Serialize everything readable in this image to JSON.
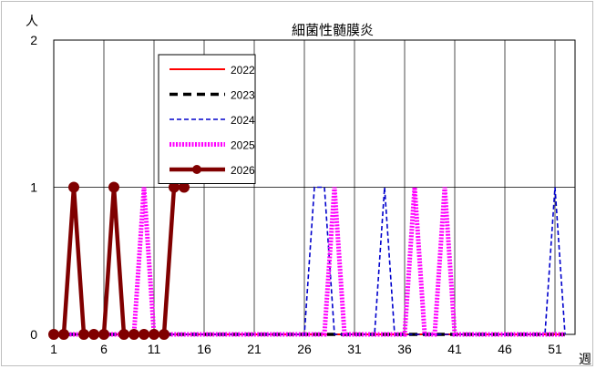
{
  "chart_data": {
    "type": "line",
    "title": "細菌性髄膜炎",
    "xlabel": "週",
    "ylabel": "人",
    "ylim": [
      0,
      2
    ],
    "xlim": [
      1,
      53
    ],
    "yticks": [
      "0",
      "1",
      "2"
    ],
    "xticks": [
      "1",
      "6",
      "11",
      "16",
      "21",
      "26",
      "31",
      "36",
      "41",
      "46",
      "51"
    ],
    "grid": true,
    "legend_position": "top-left",
    "series": [
      {
        "name": "2022",
        "color": "#ff0000",
        "style": "solid",
        "x": [
          1,
          2,
          3,
          4,
          5,
          6,
          7,
          8,
          9,
          10,
          11,
          12,
          13,
          14,
          15,
          16,
          17,
          18,
          19,
          20,
          21,
          22,
          23,
          24,
          25,
          26,
          27,
          28,
          29,
          30,
          31,
          32,
          33,
          34,
          35,
          36,
          37,
          38,
          39,
          40,
          41,
          42,
          43,
          44,
          45,
          46,
          47,
          48,
          49,
          50,
          51,
          52
        ],
        "values": [
          0,
          0,
          0,
          0,
          0,
          0,
          0,
          0,
          0,
          0,
          0,
          0,
          0,
          0,
          0,
          0,
          0,
          0,
          0,
          0,
          0,
          0,
          0,
          0,
          0,
          0,
          0,
          0,
          0,
          0,
          0,
          0,
          0,
          0,
          0,
          0,
          0,
          0,
          0,
          0,
          0,
          0,
          0,
          0,
          0,
          0,
          0,
          0,
          0,
          0,
          0,
          0
        ]
      },
      {
        "name": "2023",
        "color": "#000000",
        "style": "thick-dash",
        "x": [
          1,
          2,
          3,
          4,
          5,
          6,
          7,
          8,
          9,
          10,
          11,
          12,
          13,
          14,
          15,
          16,
          17,
          18,
          19,
          20,
          21,
          22,
          23,
          24,
          25,
          26,
          27,
          28,
          29,
          30,
          31,
          32,
          33,
          34,
          35,
          36,
          37,
          38,
          39,
          40,
          41,
          42,
          43,
          44,
          45,
          46,
          47,
          48,
          49,
          50,
          51,
          52
        ],
        "values": [
          0,
          0,
          0,
          0,
          0,
          0,
          0,
          0,
          0,
          0,
          0,
          0,
          0,
          0,
          0,
          0,
          0,
          0,
          0,
          0,
          0,
          0,
          0,
          0,
          0,
          0,
          0,
          0,
          0,
          0,
          0,
          0,
          0,
          0,
          0,
          0,
          0,
          0,
          0,
          0,
          0,
          0,
          0,
          0,
          0,
          0,
          0,
          0,
          0,
          0,
          0,
          0
        ]
      },
      {
        "name": "2024",
        "color": "#0000cc",
        "style": "dash",
        "x": [
          1,
          2,
          3,
          4,
          5,
          6,
          7,
          8,
          9,
          10,
          11,
          12,
          13,
          14,
          15,
          16,
          17,
          18,
          19,
          20,
          21,
          22,
          23,
          24,
          25,
          26,
          27,
          28,
          29,
          30,
          31,
          32,
          33,
          34,
          35,
          36,
          37,
          38,
          39,
          40,
          41,
          42,
          43,
          44,
          45,
          46,
          47,
          48,
          49,
          50,
          51,
          52
        ],
        "values": [
          0,
          0,
          0,
          0,
          0,
          0,
          0,
          0,
          0,
          0,
          0,
          0,
          0,
          0,
          0,
          0,
          0,
          0,
          0,
          0,
          0,
          0,
          0,
          0,
          0,
          0,
          1,
          1,
          0,
          0,
          0,
          0,
          0,
          1,
          0,
          0,
          0,
          0,
          0,
          0,
          0,
          0,
          0,
          0,
          0,
          0,
          0,
          0,
          0,
          0,
          1,
          0
        ]
      },
      {
        "name": "2025",
        "color": "#ff00ff",
        "style": "dotted-thick",
        "x": [
          1,
          2,
          3,
          4,
          5,
          6,
          7,
          8,
          9,
          10,
          11,
          12,
          13,
          14,
          15,
          16,
          17,
          18,
          19,
          20,
          21,
          22,
          23,
          24,
          25,
          26,
          27,
          28,
          29,
          30,
          31,
          32,
          33,
          34,
          35,
          36,
          37,
          38,
          39,
          40,
          41,
          42,
          43,
          44,
          45,
          46,
          47,
          48,
          49,
          50,
          51,
          52
        ],
        "values": [
          0,
          0,
          0,
          0,
          0,
          0,
          0,
          0,
          0,
          1,
          0,
          0,
          0,
          0,
          0,
          0,
          0,
          0,
          0,
          0,
          0,
          0,
          0,
          0,
          0,
          0,
          0,
          0,
          1,
          0,
          0,
          0,
          0,
          0,
          0,
          0,
          1,
          0,
          0,
          1,
          0,
          0,
          0,
          0,
          0,
          0,
          0,
          0,
          0,
          0,
          0,
          0
        ]
      },
      {
        "name": "2026",
        "color": "#800000",
        "style": "solid-marker",
        "x": [
          1,
          2,
          3,
          4,
          5,
          6,
          7,
          8,
          9,
          10,
          11,
          12,
          13,
          14
        ],
        "values": [
          0,
          0,
          1,
          0,
          0,
          0,
          1,
          0,
          0,
          0,
          0,
          0,
          1,
          1
        ]
      }
    ]
  }
}
